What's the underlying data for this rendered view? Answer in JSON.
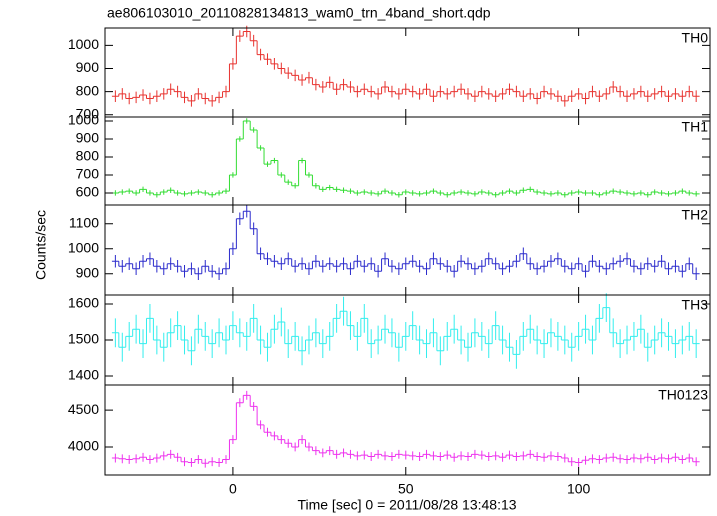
{
  "figure": {
    "title": "ae806103010_20110828134813_wam0_trn_4band_short.qdp",
    "xlabel": "Time [sec] 0 = 2011/08/28 13:48:13",
    "ylabel": "Counts/sec"
  },
  "chart_data": [
    {
      "type": "step",
      "name": "TH0",
      "color": "#e8332f",
      "error": 25,
      "xlim": [
        -37,
        138
      ],
      "xticks": [
        0,
        50,
        100
      ],
      "xtick_labels": false,
      "ylim": [
        690,
        1075
      ],
      "yticks": [
        700,
        800,
        900,
        1000
      ],
      "x": [
        -34,
        -32,
        -30,
        -28,
        -26,
        -24,
        -22,
        -20,
        -18,
        -16,
        -14,
        -12,
        -10,
        -8,
        -6,
        -4,
        -2,
        0,
        2,
        4,
        6,
        8,
        10,
        12,
        14,
        16,
        18,
        20,
        22,
        24,
        26,
        28,
        30,
        32,
        34,
        36,
        38,
        40,
        42,
        44,
        46,
        48,
        50,
        52,
        54,
        56,
        58,
        60,
        62,
        64,
        66,
        68,
        70,
        72,
        74,
        76,
        78,
        80,
        82,
        84,
        86,
        88,
        90,
        92,
        94,
        96,
        98,
        100,
        102,
        104,
        106,
        108,
        110,
        112,
        114,
        116,
        118,
        120,
        122,
        124,
        126,
        128,
        130,
        132,
        134
      ],
      "values": [
        780,
        790,
        770,
        775,
        785,
        770,
        780,
        790,
        810,
        800,
        775,
        760,
        790,
        770,
        760,
        775,
        800,
        920,
        1040,
        1060,
        1020,
        960,
        940,
        920,
        900,
        880,
        870,
        850,
        860,
        830,
        820,
        840,
        810,
        830,
        820,
        800,
        810,
        800,
        790,
        820,
        800,
        790,
        810,
        800,
        790,
        810,
        780,
        800,
        790,
        800,
        810,
        790,
        780,
        800,
        790,
        780,
        790,
        810,
        800,
        780,
        790,
        770,
        800,
        790,
        780,
        760,
        780,
        790,
        770,
        800,
        780,
        790,
        820,
        800,
        780,
        790,
        800,
        780,
        790,
        800,
        780,
        790,
        780,
        800,
        780
      ]
    },
    {
      "type": "step",
      "name": "TH1",
      "color": "#33dd33",
      "error": 15,
      "xlim": [
        -37,
        138
      ],
      "xticks": [
        0,
        50,
        100
      ],
      "xtick_labels": false,
      "ylim": [
        533,
        1022
      ],
      "yticks": [
        600,
        700,
        800,
        900,
        1000
      ],
      "x": [
        -34,
        -32,
        -30,
        -28,
        -26,
        -24,
        -22,
        -20,
        -18,
        -16,
        -14,
        -12,
        -10,
        -8,
        -6,
        -4,
        -2,
        0,
        2,
        4,
        6,
        8,
        10,
        12,
        14,
        16,
        18,
        20,
        22,
        24,
        26,
        28,
        30,
        32,
        34,
        36,
        38,
        40,
        42,
        44,
        46,
        48,
        50,
        52,
        54,
        56,
        58,
        60,
        62,
        64,
        66,
        68,
        70,
        72,
        74,
        76,
        78,
        80,
        82,
        84,
        86,
        88,
        90,
        92,
        94,
        96,
        98,
        100,
        102,
        104,
        106,
        108,
        110,
        112,
        114,
        116,
        118,
        120,
        122,
        124,
        126,
        128,
        130,
        132,
        134
      ],
      "values": [
        600,
        605,
        610,
        600,
        620,
        600,
        590,
        605,
        615,
        600,
        595,
        600,
        605,
        600,
        590,
        600,
        610,
        700,
        900,
        1000,
        950,
        850,
        760,
        780,
        700,
        660,
        640,
        780,
        700,
        640,
        620,
        630,
        620,
        615,
        610,
        600,
        605,
        600,
        595,
        610,
        600,
        590,
        605,
        600,
        595,
        600,
        610,
        600,
        590,
        600,
        605,
        600,
        595,
        605,
        600,
        590,
        600,
        610,
        600,
        615,
        620,
        605,
        600,
        595,
        600,
        590,
        600,
        605,
        600,
        600,
        590,
        600,
        610,
        605,
        600,
        595,
        600,
        590,
        605,
        600,
        595,
        600,
        610,
        600,
        595
      ]
    },
    {
      "type": "step",
      "name": "TH2",
      "color": "#2b2bcc",
      "error": 25,
      "xlim": [
        -37,
        138
      ],
      "xticks": [
        0,
        50,
        100
      ],
      "xtick_labels": false,
      "ylim": [
        815,
        1175
      ],
      "yticks": [
        900,
        1000,
        1100
      ],
      "x": [
        -34,
        -32,
        -30,
        -28,
        -26,
        -24,
        -22,
        -20,
        -18,
        -16,
        -14,
        -12,
        -10,
        -8,
        -6,
        -4,
        -2,
        0,
        2,
        4,
        6,
        8,
        10,
        12,
        14,
        16,
        18,
        20,
        22,
        24,
        26,
        28,
        30,
        32,
        34,
        36,
        38,
        40,
        42,
        44,
        46,
        48,
        50,
        52,
        54,
        56,
        58,
        60,
        62,
        64,
        66,
        68,
        70,
        72,
        74,
        76,
        78,
        80,
        82,
        84,
        86,
        88,
        90,
        92,
        94,
        96,
        98,
        100,
        102,
        104,
        106,
        108,
        110,
        112,
        114,
        116,
        118,
        120,
        122,
        124,
        126,
        128,
        130,
        132,
        134
      ],
      "values": [
        950,
        930,
        940,
        920,
        950,
        960,
        930,
        920,
        940,
        930,
        910,
        920,
        900,
        930,
        910,
        900,
        920,
        1000,
        1120,
        1150,
        1080,
        980,
        960,
        950,
        940,
        960,
        930,
        940,
        920,
        950,
        930,
        940,
        930,
        940,
        920,
        950,
        930,
        940,
        910,
        960,
        930,
        920,
        940,
        950,
        930,
        920,
        960,
        940,
        930,
        910,
        950,
        940,
        920,
        930,
        960,
        940,
        920,
        930,
        950,
        980,
        940,
        920,
        930,
        950,
        960,
        930,
        920,
        940,
        910,
        950,
        930,
        920,
        940,
        950,
        960,
        930,
        920,
        940,
        930,
        950,
        920,
        930,
        910,
        940,
        900
      ]
    },
    {
      "type": "step",
      "name": "TH3",
      "color": "#33eeee",
      "error": 40,
      "xlim": [
        -37,
        138
      ],
      "xticks": [
        0,
        50,
        100
      ],
      "xtick_labels": false,
      "ylim": [
        1375,
        1625
      ],
      "yticks": [
        1400,
        1500,
        1600
      ],
      "x": [
        -34,
        -32,
        -30,
        -28,
        -26,
        -24,
        -22,
        -20,
        -18,
        -16,
        -14,
        -12,
        -10,
        -8,
        -6,
        -4,
        -2,
        0,
        2,
        4,
        6,
        8,
        10,
        12,
        14,
        16,
        18,
        20,
        22,
        24,
        26,
        28,
        30,
        32,
        34,
        36,
        38,
        40,
        42,
        44,
        46,
        48,
        50,
        52,
        54,
        56,
        58,
        60,
        62,
        64,
        66,
        68,
        70,
        72,
        74,
        76,
        78,
        80,
        82,
        84,
        86,
        88,
        90,
        92,
        94,
        96,
        98,
        100,
        102,
        104,
        106,
        108,
        110,
        112,
        114,
        116,
        118,
        120,
        122,
        124,
        126,
        128,
        130,
        132,
        134
      ],
      "values": [
        1520,
        1480,
        1510,
        1530,
        1490,
        1560,
        1500,
        1480,
        1520,
        1540,
        1500,
        1470,
        1530,
        1510,
        1490,
        1520,
        1500,
        1540,
        1520,
        1510,
        1560,
        1500,
        1480,
        1530,
        1550,
        1490,
        1510,
        1470,
        1500,
        1520,
        1490,
        1510,
        1560,
        1580,
        1540,
        1510,
        1560,
        1490,
        1500,
        1530,
        1520,
        1480,
        1510,
        1540,
        1500,
        1490,
        1520,
        1470,
        1510,
        1530,
        1500,
        1480,
        1520,
        1510,
        1490,
        1540,
        1500,
        1480,
        1460,
        1510,
        1530,
        1500,
        1490,
        1520,
        1510,
        1500,
        1480,
        1510,
        1530,
        1500,
        1560,
        1590,
        1520,
        1490,
        1500,
        1510,
        1530,
        1480,
        1500,
        1520,
        1510,
        1490,
        1500,
        1510,
        1490
      ]
    },
    {
      "type": "step",
      "name": "TH0123",
      "color": "#ee33ee",
      "error": 60,
      "xlim": [
        -37,
        138
      ],
      "xticks": [
        0,
        50,
        100
      ],
      "xtick_labels": true,
      "ylim": [
        3620,
        4840
      ],
      "yticks": [
        4000,
        4500
      ],
      "x": [
        -34,
        -32,
        -30,
        -28,
        -26,
        -24,
        -22,
        -20,
        -18,
        -16,
        -14,
        -12,
        -10,
        -8,
        -6,
        -4,
        -2,
        0,
        2,
        4,
        6,
        8,
        10,
        12,
        14,
        16,
        18,
        20,
        22,
        24,
        26,
        28,
        30,
        32,
        34,
        36,
        38,
        40,
        42,
        44,
        46,
        48,
        50,
        52,
        54,
        56,
        58,
        60,
        62,
        64,
        66,
        68,
        70,
        72,
        74,
        76,
        78,
        80,
        82,
        84,
        86,
        88,
        90,
        92,
        94,
        96,
        98,
        100,
        102,
        104,
        106,
        108,
        110,
        112,
        114,
        116,
        118,
        120,
        122,
        124,
        126,
        128,
        130,
        132,
        134
      ],
      "values": [
        3850,
        3840,
        3830,
        3840,
        3860,
        3830,
        3850,
        3880,
        3900,
        3860,
        3800,
        3790,
        3830,
        3780,
        3800,
        3790,
        3830,
        4100,
        4600,
        4700,
        4550,
        4300,
        4200,
        4150,
        4100,
        4050,
        4000,
        4100,
        4000,
        3950,
        3920,
        3950,
        3900,
        3920,
        3900,
        3880,
        3890,
        3870,
        3900,
        3880,
        3870,
        3900,
        3890,
        3880,
        3870,
        3900,
        3880,
        3870,
        3890,
        3860,
        3880,
        3870,
        3900,
        3890,
        3870,
        3880,
        3860,
        3890,
        3870,
        3880,
        3900,
        3870,
        3860,
        3880,
        3870,
        3850,
        3800,
        3790,
        3820,
        3840,
        3830,
        3850,
        3860,
        3840,
        3830,
        3850,
        3840,
        3860,
        3830,
        3850,
        3840,
        3860,
        3830,
        3850,
        3800
      ]
    }
  ]
}
